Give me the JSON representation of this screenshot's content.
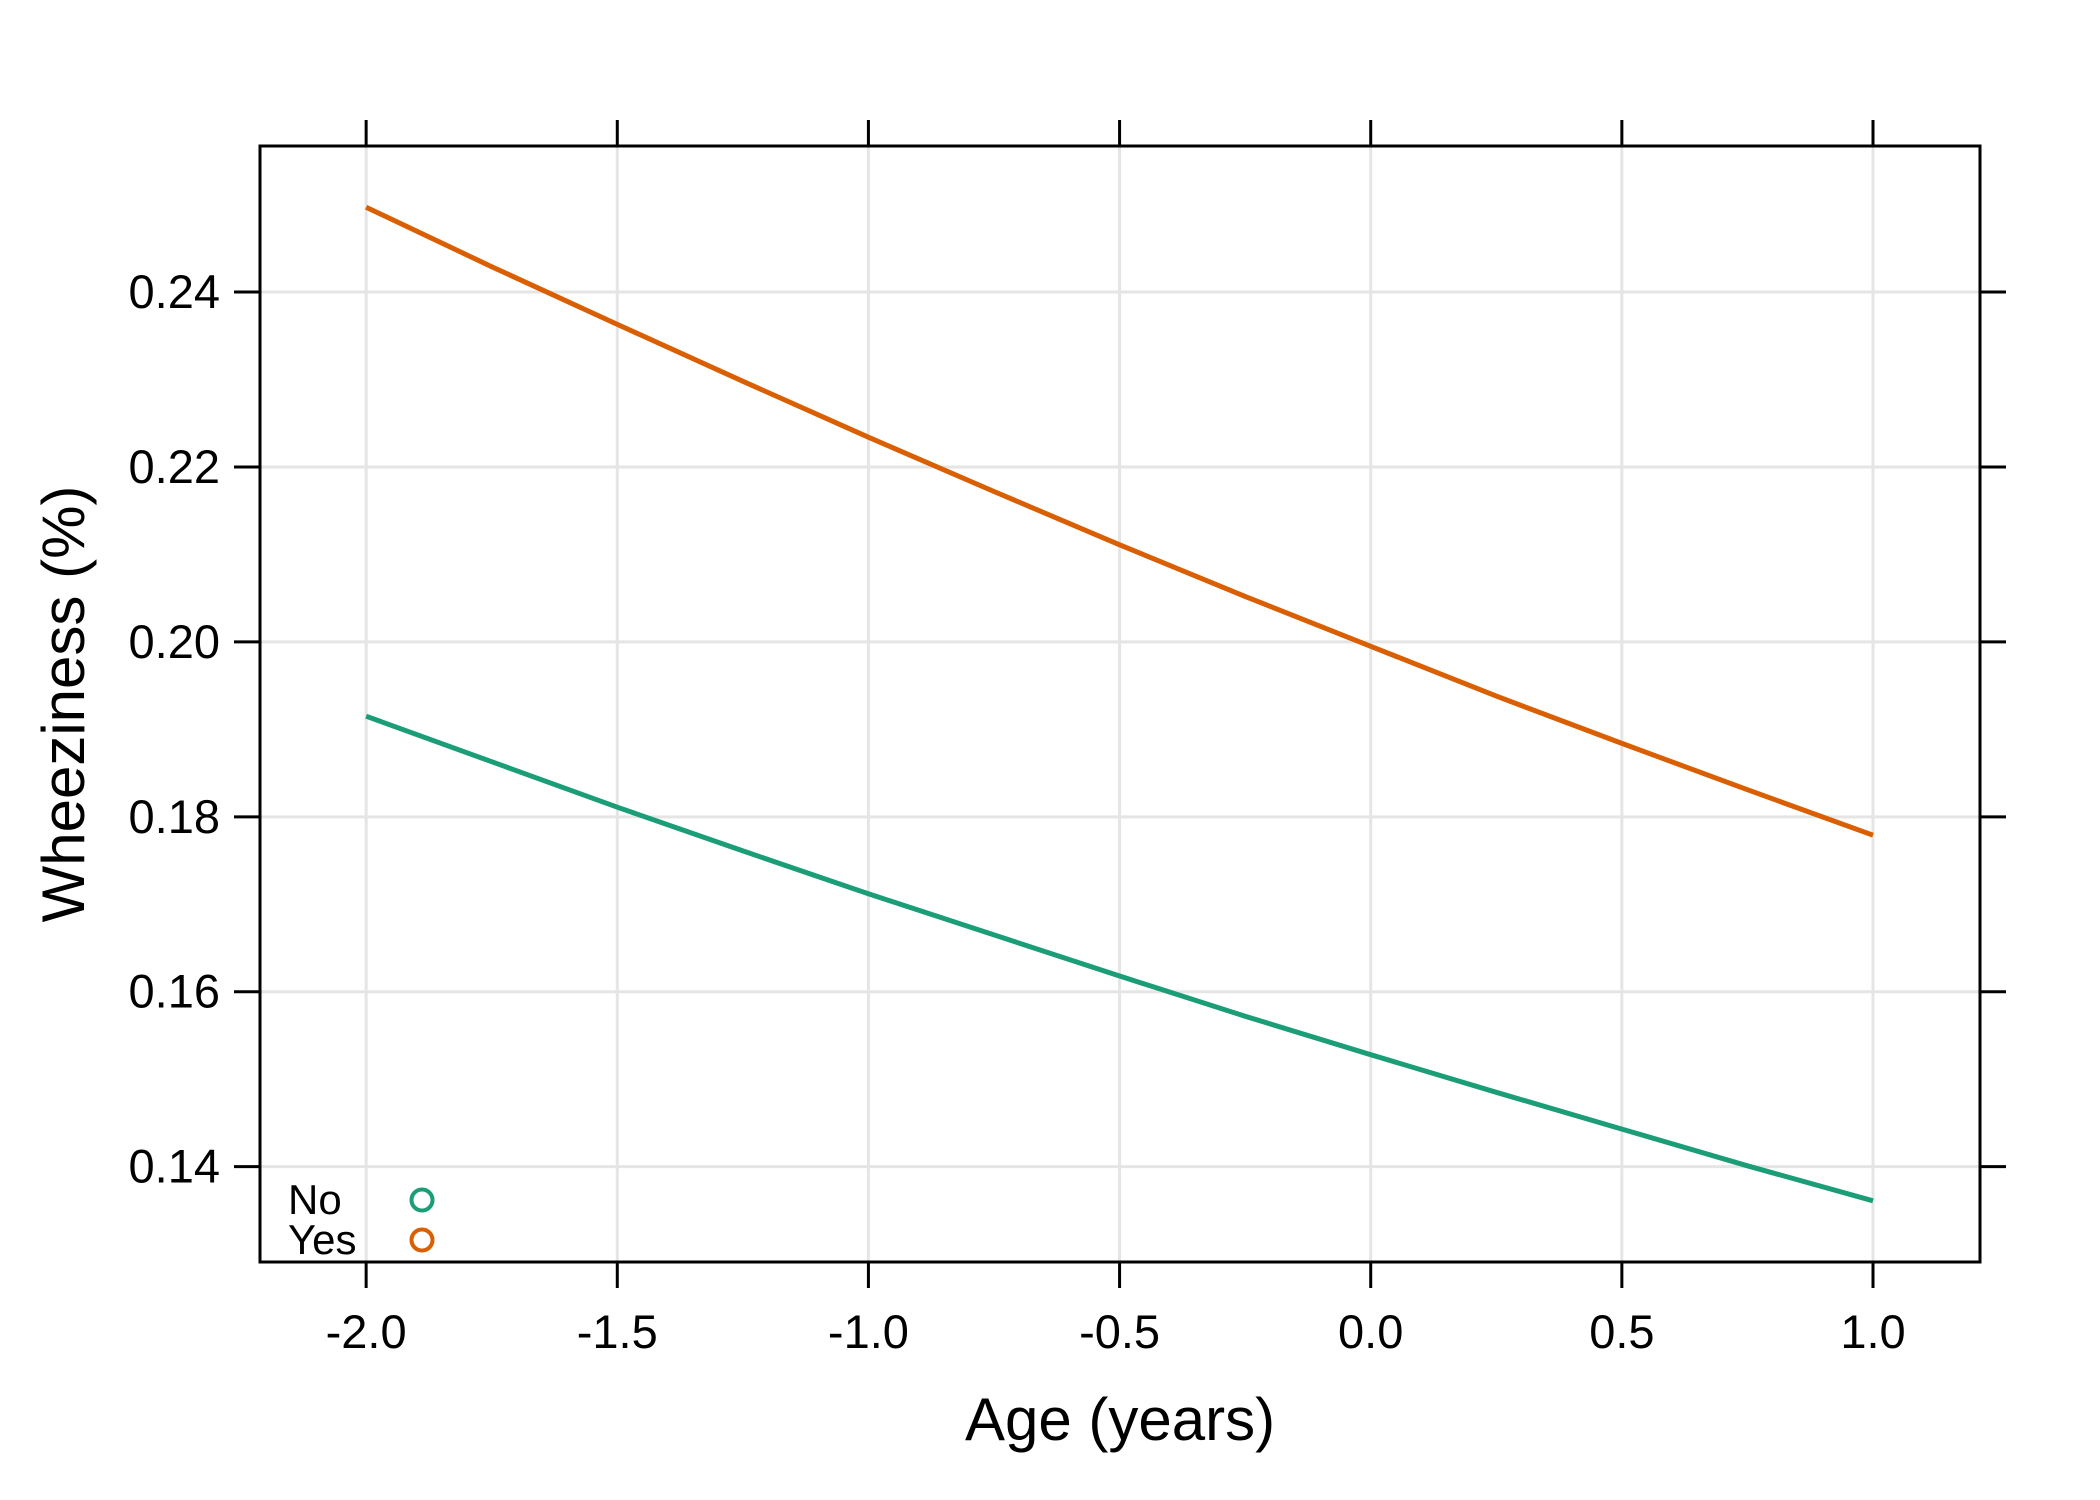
{
  "figure": {
    "background": "#FFFFFF",
    "text_color": "#000000",
    "axis_color": "#000000",
    "grid_color": "#E5E5E5"
  },
  "chart_data": {
    "type": "line",
    "title": "",
    "xlabel": "Age (years)",
    "ylabel": "Wheeziness (%)",
    "xlim": [
      -2.2113,
      1.213
    ],
    "ylim": [
      0.1291,
      0.2567
    ],
    "grid": true,
    "ticks_on_all_sides": true,
    "legend_position": "bottom-left",
    "legend_marker": "open-circle",
    "x_ticks": [
      {
        "value": -2.0,
        "label": "-2.0"
      },
      {
        "value": -1.5,
        "label": "-1.5"
      },
      {
        "value": -1.0,
        "label": "-1.0"
      },
      {
        "value": -0.5,
        "label": "-0.5"
      },
      {
        "value": 0.0,
        "label": "0.0"
      },
      {
        "value": 0.5,
        "label": "0.5"
      },
      {
        "value": 1.0,
        "label": "1.0"
      }
    ],
    "y_ticks": [
      {
        "value": 0.14,
        "label": "0.14"
      },
      {
        "value": 0.16,
        "label": "0.16"
      },
      {
        "value": 0.18,
        "label": "0.18"
      },
      {
        "value": 0.2,
        "label": "0.20"
      },
      {
        "value": 0.22,
        "label": "0.22"
      },
      {
        "value": 0.24,
        "label": "0.24"
      }
    ],
    "x": [
      -2.0,
      -1.75,
      -1.5,
      -1.25,
      -1.0,
      -0.75,
      -0.5,
      -0.25,
      0.0,
      0.25,
      0.5,
      0.75,
      1.0
    ],
    "series": [
      {
        "name": "No",
        "color": "#1B9E77",
        "values": [
          0.1915,
          0.1863,
          0.1811,
          0.1761,
          0.1712,
          0.1665,
          0.1618,
          0.1572,
          0.1528,
          0.1485,
          0.1443,
          0.1401,
          0.1361
        ]
      },
      {
        "name": "Yes",
        "color": "#D95F02",
        "values": [
          0.2497,
          0.2429,
          0.2363,
          0.2298,
          0.2234,
          0.2172,
          0.2111,
          0.2052,
          0.1995,
          0.1938,
          0.1884,
          0.1831,
          0.1779
        ]
      }
    ]
  }
}
